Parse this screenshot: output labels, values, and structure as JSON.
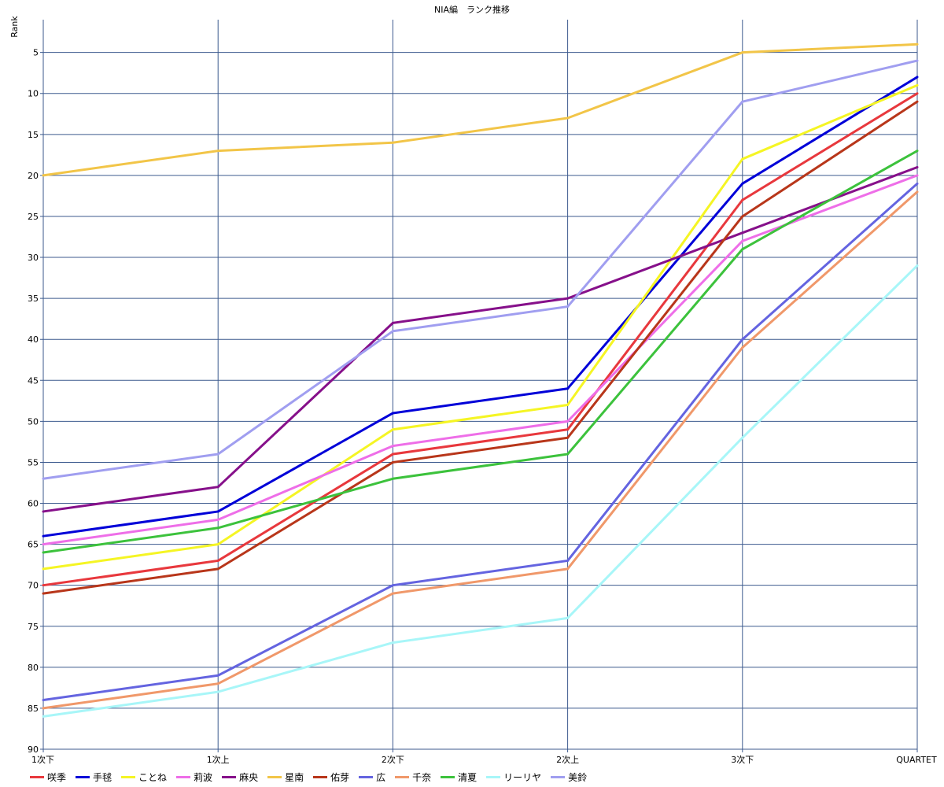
{
  "chart_data": {
    "type": "line",
    "title": "NIA編　ランク推移",
    "xlabel": "",
    "ylabel": "Rank",
    "categories": [
      "1次下",
      "1次上",
      "2次下",
      "2次上",
      "3次下",
      "QUARTET"
    ],
    "ylim": [
      1,
      90
    ],
    "y_inverted": true,
    "yticks": [
      5,
      10,
      15,
      20,
      25,
      30,
      35,
      40,
      45,
      50,
      55,
      60,
      65,
      70,
      75,
      80,
      85,
      90
    ],
    "grid": true,
    "legend_position": "bottom",
    "series": [
      {
        "name": "咲季",
        "color": "#e8383d",
        "values": [
          70,
          67,
          54,
          51,
          23,
          10
        ]
      },
      {
        "name": "手毬",
        "color": "#0000d8",
        "values": [
          64,
          61,
          49,
          46,
          21,
          8
        ]
      },
      {
        "name": "ことね",
        "color": "#f5f524",
        "values": [
          68,
          65,
          51,
          48,
          18,
          9
        ]
      },
      {
        "name": "莉波",
        "color": "#ee6ee8",
        "values": [
          65,
          62,
          53,
          50,
          28,
          20
        ]
      },
      {
        "name": "麻央",
        "color": "#86108a",
        "values": [
          61,
          58,
          38,
          35,
          27,
          19
        ]
      },
      {
        "name": "星南",
        "color": "#f2c548",
        "values": [
          20,
          17,
          16,
          13,
          5,
          4
        ]
      },
      {
        "name": "佑芽",
        "color": "#b8361a",
        "values": [
          71,
          68,
          55,
          52,
          25,
          11
        ]
      },
      {
        "name": "広",
        "color": "#6464e0",
        "values": [
          84,
          81,
          70,
          67,
          40,
          21
        ]
      },
      {
        "name": "千奈",
        "color": "#f0986a",
        "values": [
          85,
          82,
          71,
          68,
          41,
          22
        ]
      },
      {
        "name": "清夏",
        "color": "#3cc23c",
        "values": [
          66,
          63,
          57,
          54,
          29,
          17
        ]
      },
      {
        "name": "リーリヤ",
        "color": "#a8f6f8",
        "values": [
          86,
          83,
          77,
          74,
          52,
          31
        ]
      },
      {
        "name": "美鈴",
        "color": "#a09ef0",
        "values": [
          57,
          54,
          39,
          36,
          11,
          6
        ]
      }
    ]
  },
  "colors": {
    "grid": "#3c5a8e"
  }
}
